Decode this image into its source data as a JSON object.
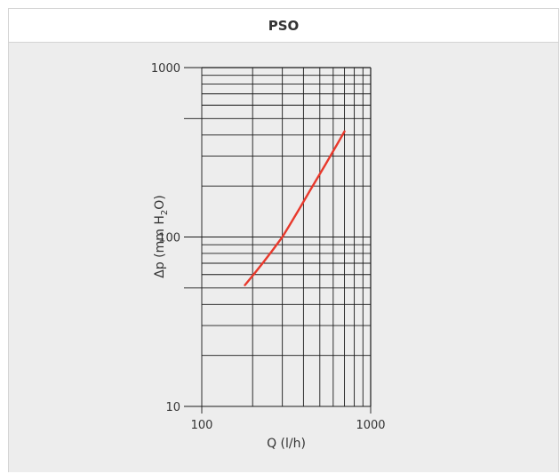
{
  "panel": {
    "title": "PSO"
  },
  "chart_data": {
    "type": "line",
    "title": "PSO",
    "xlabel": "Q (l/h)",
    "ylabel": "Δp (mm H2O)",
    "ylabel_parts": {
      "pre": "Δp (mm H",
      "sub": "2",
      "post": "O)"
    },
    "x_scale": "log",
    "y_scale": "log",
    "xlim": [
      100,
      1000
    ],
    "ylim": [
      10,
      1000
    ],
    "x_ticks": [
      {
        "value": 100,
        "label": "100"
      },
      {
        "value": 1000,
        "label": "1000"
      }
    ],
    "y_ticks": [
      {
        "value": 10,
        "label": "10"
      },
      {
        "value": 100,
        "label": "100"
      },
      {
        "value": 1000,
        "label": "1000"
      }
    ],
    "grid": true,
    "series": [
      {
        "color": "#e8392c",
        "x": [
          180,
          300,
          440,
          700
        ],
        "y": [
          52,
          100,
          190,
          420
        ]
      }
    ]
  }
}
